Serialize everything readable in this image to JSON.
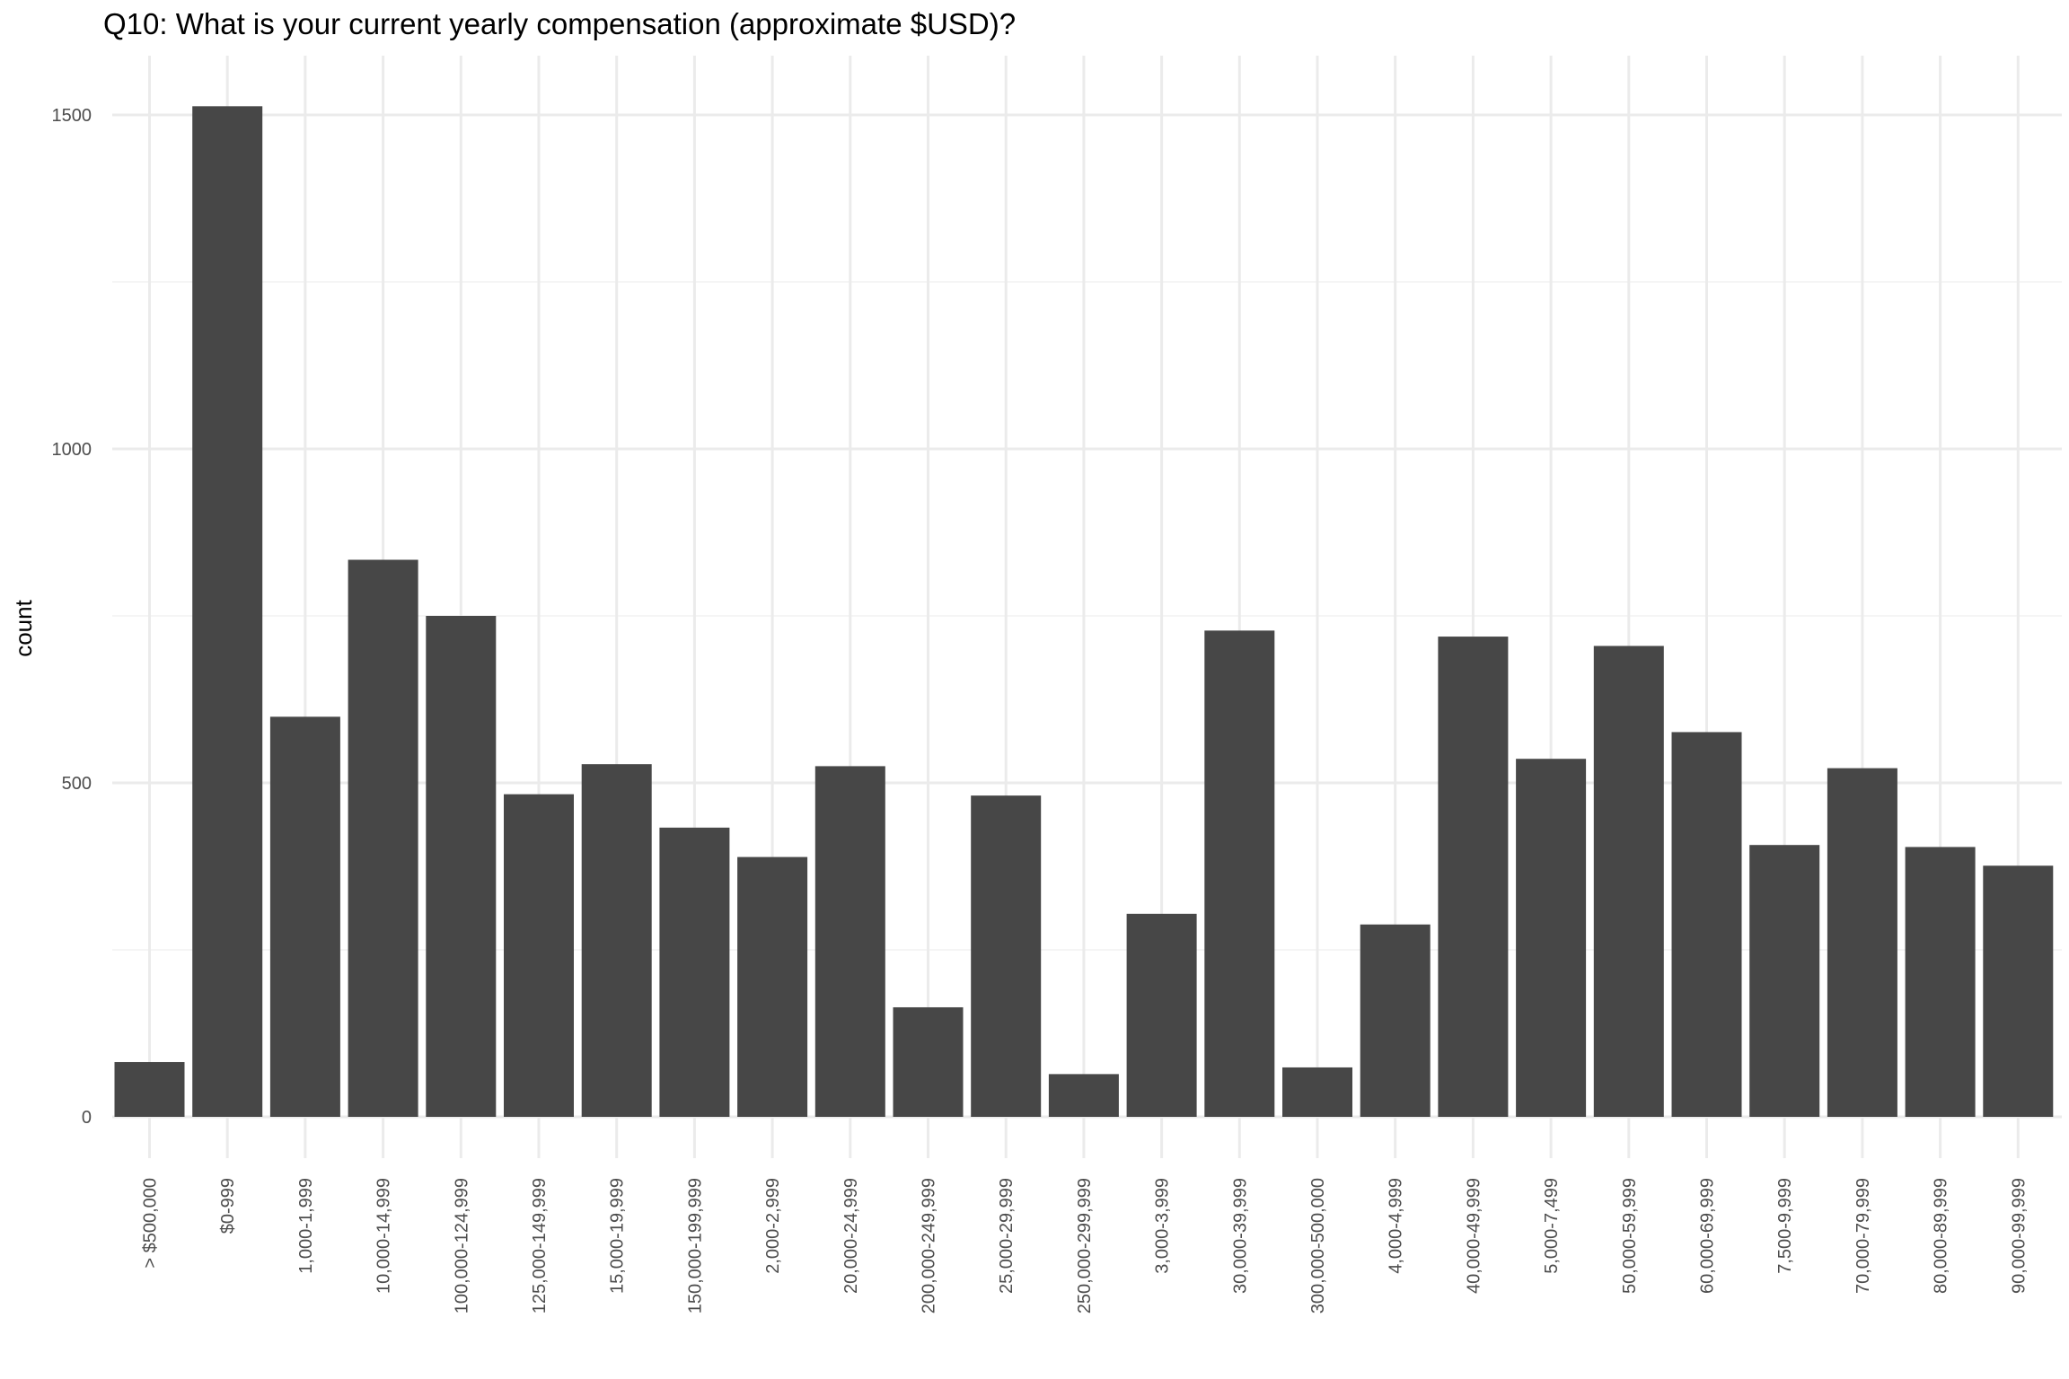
{
  "chart_data": {
    "type": "bar",
    "title": "Q10: What is your current yearly compensation (approximate $USD)?",
    "xlabel": "",
    "ylabel": "count",
    "ylim": [
      -55,
      1590
    ],
    "yticks": [
      0,
      500,
      1000,
      1500
    ],
    "grid": true,
    "bar_color": "#474747",
    "categories": [
      "> $500,000",
      "$0-999",
      "1,000-1,999",
      "10,000-14,999",
      "100,000-124,999",
      "125,000-149,999",
      "15,000-19,999",
      "150,000-199,999",
      "2,000-2,999",
      "20,000-24,999",
      "200,000-249,999",
      "25,000-29,999",
      "250,000-299,999",
      "3,000-3,999",
      "30,000-39,999",
      "300,000-500,000",
      "4,000-4,999",
      "40,000-49,999",
      "5,000-7,499",
      "50,000-59,999",
      "60,000-69,999",
      "7,500-9,999",
      "70,000-79,999",
      "80,000-89,999",
      "90,000-99,999"
    ],
    "values": [
      82,
      1513,
      599,
      834,
      750,
      483,
      528,
      433,
      389,
      525,
      164,
      481,
      64,
      304,
      728,
      74,
      288,
      719,
      536,
      705,
      576,
      407,
      522,
      404,
      376
    ]
  }
}
